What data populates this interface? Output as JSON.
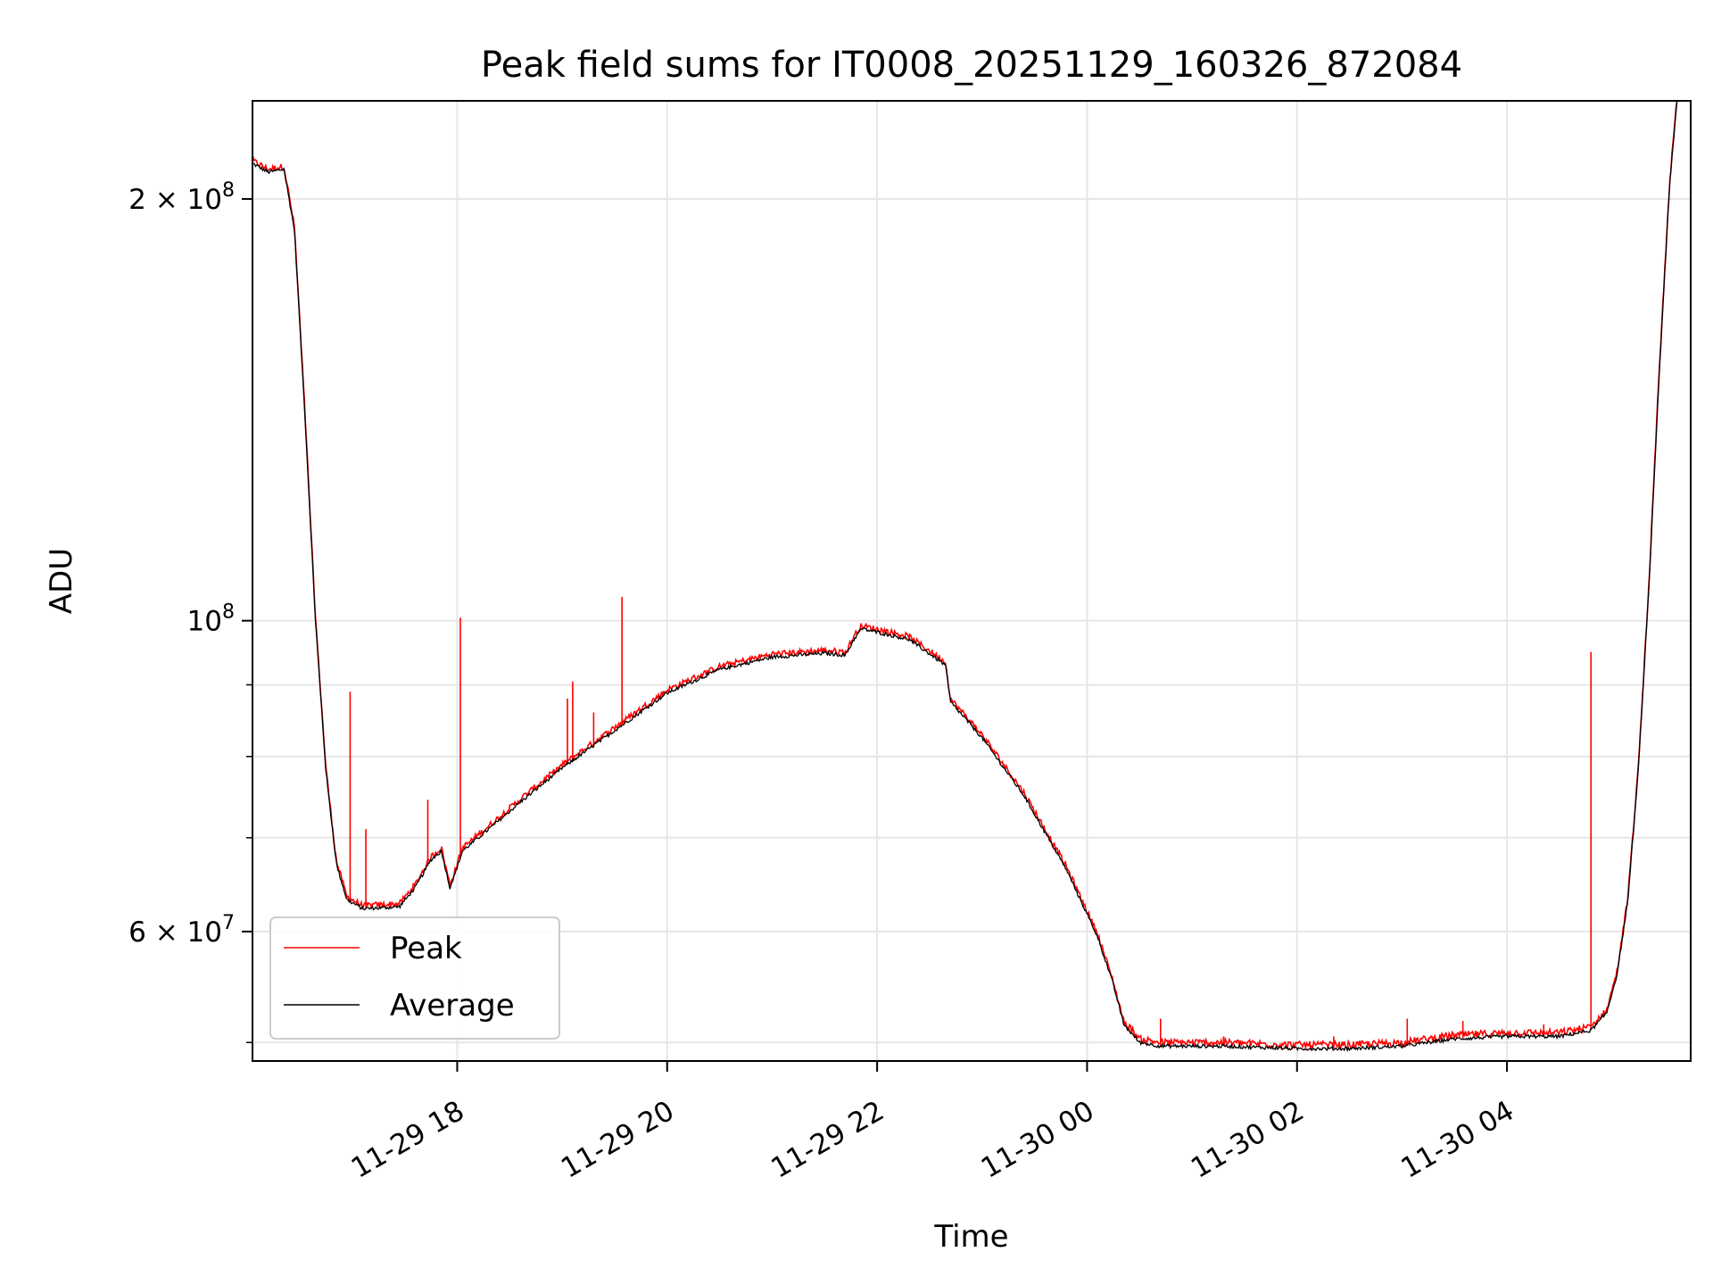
{
  "chart_data": {
    "type": "line",
    "title": "Peak field sums for IT0008_20251129_160326_872084",
    "xlabel": "Time",
    "ylabel": "ADU",
    "yscale": "log",
    "xlim": [
      16.05,
      29.75
    ],
    "ylim": [
      48500000,
      235000000
    ],
    "grid": true,
    "legend_position": "lower-left",
    "x_ticks": [
      {
        "value": 18,
        "label": "11-29 18"
      },
      {
        "value": 20,
        "label": "11-29 20"
      },
      {
        "value": 22,
        "label": "11-29 22"
      },
      {
        "value": 24,
        "label": "11-30 00"
      },
      {
        "value": 26,
        "label": "11-30 02"
      },
      {
        "value": 28,
        "label": "11-30 04"
      }
    ],
    "y_major_ticks": [
      {
        "value": 60000000,
        "mantissa": "6",
        "exponent": "7"
      },
      {
        "value": 100000000,
        "mantissa": "",
        "exponent": "8"
      },
      {
        "value": 200000000,
        "mantissa": "2",
        "exponent": "8"
      }
    ],
    "y_minor_ticks": [
      50000000,
      70000000,
      80000000,
      90000000
    ],
    "series": [
      {
        "name": "Peak",
        "color": "#ff0000",
        "note": "same trend as Average with upward spikes",
        "spikes": [
          [
            16.98,
            89000000
          ],
          [
            17.13,
            71000000
          ],
          [
            17.72,
            74500000
          ],
          [
            18.03,
            100500000
          ],
          [
            19.05,
            88000000
          ],
          [
            19.1,
            90500000
          ],
          [
            19.3,
            86000000
          ],
          [
            19.57,
            104000000
          ],
          [
            24.7,
            52000000
          ],
          [
            25.3,
            50500000
          ],
          [
            26.35,
            50500000
          ],
          [
            27.05,
            52000000
          ],
          [
            27.58,
            51800000
          ],
          [
            28.35,
            51500000
          ],
          [
            28.8,
            95000000
          ]
        ]
      },
      {
        "name": "Average",
        "color": "#000000",
        "points": [
          [
            16.05,
            212000000
          ],
          [
            16.2,
            209000000
          ],
          [
            16.35,
            210000000
          ],
          [
            16.45,
            190000000
          ],
          [
            16.55,
            140000000
          ],
          [
            16.65,
            100000000
          ],
          [
            16.75,
            78000000
          ],
          [
            16.85,
            67000000
          ],
          [
            16.95,
            63200000
          ],
          [
            17.1,
            62300000
          ],
          [
            17.3,
            62400000
          ],
          [
            17.45,
            62500000
          ],
          [
            17.6,
            64500000
          ],
          [
            17.75,
            67500000
          ],
          [
            17.85,
            68500000
          ],
          [
            17.93,
            64500000
          ],
          [
            17.98,
            66000000
          ],
          [
            18.05,
            68500000
          ],
          [
            18.3,
            71000000
          ],
          [
            18.6,
            74200000
          ],
          [
            19.0,
            78500000
          ],
          [
            19.5,
            83500000
          ],
          [
            20.0,
            88800000
          ],
          [
            20.5,
            92300000
          ],
          [
            21.0,
            94200000
          ],
          [
            21.5,
            94800000
          ],
          [
            21.7,
            94500000
          ],
          [
            21.78,
            97000000
          ],
          [
            21.85,
            98700000
          ],
          [
            22.3,
            97000000
          ],
          [
            22.65,
            93000000
          ],
          [
            22.7,
            87500000
          ],
          [
            23.0,
            82500000
          ],
          [
            23.4,
            75000000
          ],
          [
            23.8,
            66500000
          ],
          [
            24.1,
            59500000
          ],
          [
            24.25,
            55000000
          ],
          [
            24.35,
            51500000
          ],
          [
            24.5,
            50000000
          ],
          [
            24.7,
            49700000
          ],
          [
            25.3,
            49700000
          ],
          [
            26.0,
            49500000
          ],
          [
            26.5,
            49500000
          ],
          [
            27.0,
            49700000
          ],
          [
            27.5,
            50300000
          ],
          [
            28.0,
            50500000
          ],
          [
            28.5,
            50500000
          ],
          [
            28.8,
            51000000
          ],
          [
            28.95,
            52500000
          ],
          [
            29.05,
            56000000
          ],
          [
            29.15,
            63000000
          ],
          [
            29.25,
            78000000
          ],
          [
            29.35,
            105000000
          ],
          [
            29.45,
            150000000
          ],
          [
            29.55,
            205000000
          ],
          [
            29.62,
            235000000
          ]
        ]
      }
    ]
  }
}
